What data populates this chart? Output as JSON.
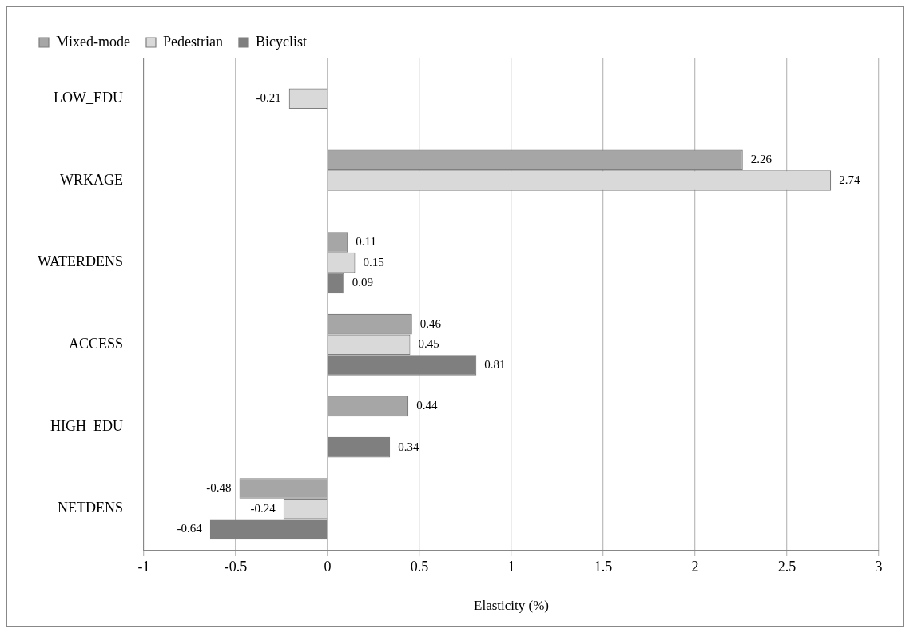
{
  "chart_data": {
    "type": "bar",
    "orientation": "horizontal",
    "xlabel": "Elasticity (%)",
    "categories": [
      "LOW_EDU",
      "WRKAGE",
      "WATERDENS",
      "ACCESS",
      "HIGH_EDU",
      "NETDENS"
    ],
    "series": [
      {
        "name": "Mixed-mode",
        "color": "#a6a6a6",
        "values": [
          null,
          2.26,
          0.11,
          0.46,
          0.44,
          -0.48
        ]
      },
      {
        "name": "Pedestrian",
        "color": "#d9d9d9",
        "values": [
          -0.21,
          2.74,
          0.15,
          0.45,
          null,
          -0.24
        ]
      },
      {
        "name": "Bicyclist",
        "color": "#7f7f7f",
        "values": [
          null,
          null,
          0.09,
          0.81,
          0.34,
          -0.64
        ]
      }
    ],
    "xlim": [
      -1,
      3
    ],
    "xticks": [
      -1,
      -0.5,
      0,
      0.5,
      1,
      1.5,
      2,
      2.5,
      3
    ],
    "grid": "x",
    "legend": "top left",
    "data_labels": true
  }
}
